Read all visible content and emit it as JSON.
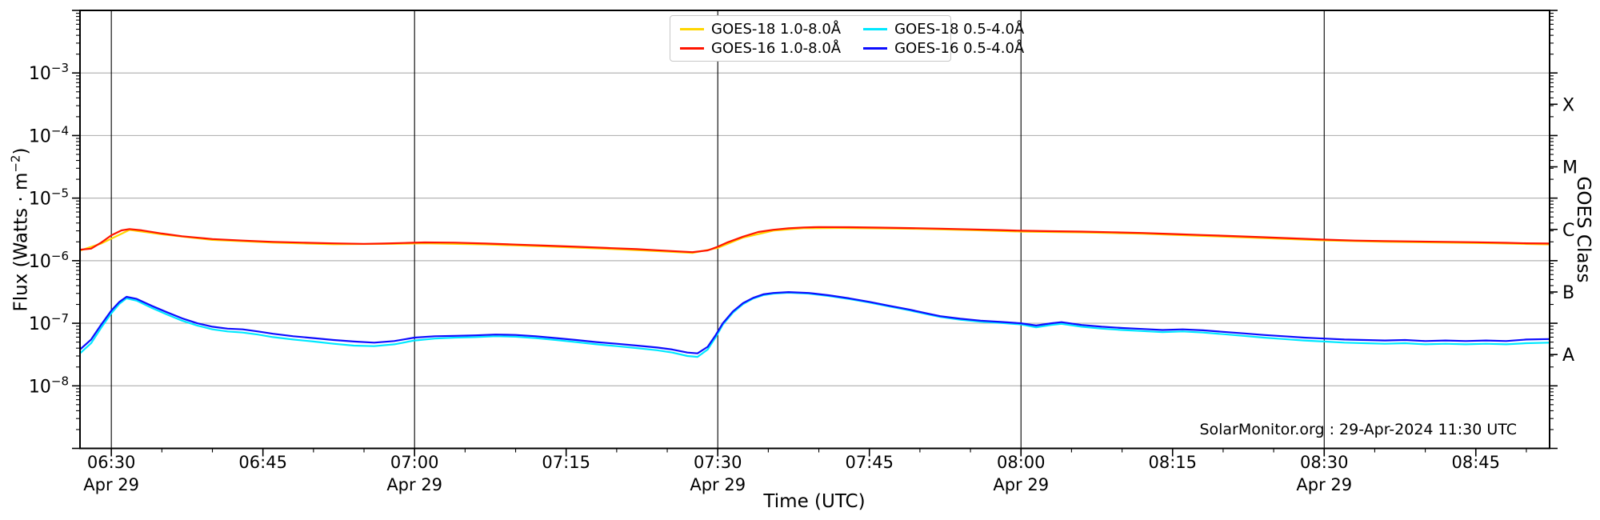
{
  "watermark": "SolarMonitor.org : 29-Apr-2024 11:30 UTC",
  "chart_data": {
    "type": "line",
    "title": "",
    "x_axis": {
      "label": "Time (UTC)",
      "range_minutes": [
        386.9,
        532.3
      ],
      "minor_step_minutes": 5,
      "major_ticks": [
        {
          "t": 390,
          "label": "06:30",
          "date": "Apr 29",
          "grid": true
        },
        {
          "t": 405,
          "label": "06:45"
        },
        {
          "t": 420,
          "label": "07:00",
          "date": "Apr 29",
          "grid": true
        },
        {
          "t": 435,
          "label": "07:15"
        },
        {
          "t": 450,
          "label": "07:30",
          "date": "Apr 29",
          "grid": true
        },
        {
          "t": 465,
          "label": "07:45"
        },
        {
          "t": 480,
          "label": "08:00",
          "date": "Apr 29",
          "grid": true
        },
        {
          "t": 495,
          "label": "08:15"
        },
        {
          "t": 510,
          "label": "08:30",
          "date": "Apr 29",
          "grid": true
        },
        {
          "t": 525,
          "label": "08:45"
        }
      ]
    },
    "y_axis": {
      "label_pre": "Flux (Watts · m",
      "label_sup": "−2",
      "label_post": ")",
      "scale": "log",
      "ylim": [
        1e-09,
        0.01
      ],
      "tick_label_base": "10",
      "labeled_decades": [
        -3,
        -4,
        -5,
        -6,
        -7,
        -8
      ]
    },
    "right_axis": {
      "label": "GOES Class",
      "classes": [
        {
          "label": "X",
          "flux": 0.0003162
        },
        {
          "label": "M",
          "flux": 3.162e-05
        },
        {
          "label": "C",
          "flux": 3.162e-06
        },
        {
          "label": "B",
          "flux": 3.162e-07
        },
        {
          "label": "A",
          "flux": 3.162e-08
        }
      ]
    },
    "grid": {
      "h_color": "#b4b4b4",
      "v_color": "#000000"
    },
    "legend_position": "top-center",
    "series": [
      {
        "name": "GOES-18 1.0-8.0Å",
        "color": "#ffd600",
        "points": [
          [
            386.9,
            1.45e-06
          ],
          [
            389,
            1.88e-06
          ],
          [
            391.8,
            3.1e-06
          ],
          [
            395,
            2.64e-06
          ],
          [
            400,
            2.15e-06
          ],
          [
            406,
            1.94e-06
          ],
          [
            412,
            1.83e-06
          ],
          [
            418,
            1.86e-06
          ],
          [
            421,
            1.9e-06
          ],
          [
            427,
            1.82e-06
          ],
          [
            433,
            1.69e-06
          ],
          [
            439,
            1.55e-06
          ],
          [
            444,
            1.42e-06
          ],
          [
            447.5,
            1.33e-06
          ],
          [
            450,
            1.6e-06
          ],
          [
            452.5,
            2.34e-06
          ],
          [
            455.5,
            3.02e-06
          ],
          [
            458.5,
            3.3e-06
          ],
          [
            462,
            3.33e-06
          ],
          [
            466,
            3.28e-06
          ],
          [
            470,
            3.22e-06
          ],
          [
            475,
            3.08e-06
          ],
          [
            480,
            2.92e-06
          ],
          [
            486,
            2.83e-06
          ],
          [
            492,
            2.69e-06
          ],
          [
            498,
            2.49e-06
          ],
          [
            504,
            2.3e-06
          ],
          [
            510,
            2.11e-06
          ],
          [
            516,
            2e-06
          ],
          [
            522,
            1.94e-06
          ],
          [
            527,
            1.89e-06
          ],
          [
            532.3,
            1.82e-06
          ]
        ]
      },
      {
        "name": "GOES-16 1.0-8.0Å",
        "color": "#ff1400",
        "points": [
          [
            386.9,
            1.5e-06
          ],
          [
            388,
            1.56e-06
          ],
          [
            389,
            1.95e-06
          ],
          [
            390,
            2.55e-06
          ],
          [
            391,
            3.05e-06
          ],
          [
            391.8,
            3.2e-06
          ],
          [
            393,
            3.06e-06
          ],
          [
            395,
            2.72e-06
          ],
          [
            397,
            2.46e-06
          ],
          [
            400,
            2.22e-06
          ],
          [
            403,
            2.1e-06
          ],
          [
            406,
            2e-06
          ],
          [
            409,
            1.94e-06
          ],
          [
            412,
            1.89e-06
          ],
          [
            415,
            1.86e-06
          ],
          [
            417,
            1.88e-06
          ],
          [
            419,
            1.92e-06
          ],
          [
            421,
            1.96e-06
          ],
          [
            424,
            1.94e-06
          ],
          [
            427,
            1.88e-06
          ],
          [
            430,
            1.81e-06
          ],
          [
            433,
            1.74e-06
          ],
          [
            436,
            1.67e-06
          ],
          [
            439,
            1.6e-06
          ],
          [
            442,
            1.53e-06
          ],
          [
            444,
            1.47e-06
          ],
          [
            446,
            1.41e-06
          ],
          [
            447.5,
            1.37e-06
          ],
          [
            449,
            1.46e-06
          ],
          [
            450,
            1.67e-06
          ],
          [
            451,
            1.97e-06
          ],
          [
            452.5,
            2.42e-06
          ],
          [
            454,
            2.87e-06
          ],
          [
            455.5,
            3.12e-06
          ],
          [
            457,
            3.3e-06
          ],
          [
            458.5,
            3.4e-06
          ],
          [
            460,
            3.45e-06
          ],
          [
            463,
            3.43e-06
          ],
          [
            466,
            3.38e-06
          ],
          [
            469,
            3.32e-06
          ],
          [
            472,
            3.25e-06
          ],
          [
            475,
            3.17e-06
          ],
          [
            478,
            3.08e-06
          ],
          [
            480,
            3.01e-06
          ],
          [
            483,
            2.96e-06
          ],
          [
            486,
            2.92e-06
          ],
          [
            489,
            2.85e-06
          ],
          [
            492,
            2.77e-06
          ],
          [
            495,
            2.67e-06
          ],
          [
            498,
            2.57e-06
          ],
          [
            501,
            2.47e-06
          ],
          [
            504,
            2.37e-06
          ],
          [
            507,
            2.27e-06
          ],
          [
            510,
            2.17e-06
          ],
          [
            513,
            2.1e-06
          ],
          [
            516,
            2.06e-06
          ],
          [
            519,
            2.03e-06
          ],
          [
            522,
            2e-06
          ],
          [
            525,
            1.97e-06
          ],
          [
            528,
            1.93e-06
          ],
          [
            530,
            1.9e-06
          ],
          [
            532.3,
            1.88e-06
          ]
        ]
      },
      {
        "name": "GOES-18 0.5-4.0Å",
        "color": "#00e8ff",
        "points": [
          [
            386.9,
            3.3e-08
          ],
          [
            388,
            4.8e-08
          ],
          [
            389,
            8.5e-08
          ],
          [
            390,
            1.45e-07
          ],
          [
            390.8,
            2.05e-07
          ],
          [
            391.5,
            2.5e-07
          ],
          [
            392.5,
            2.3e-07
          ],
          [
            394,
            1.76e-07
          ],
          [
            395.5,
            1.38e-07
          ],
          [
            397,
            1.1e-07
          ],
          [
            398.5,
            9.2e-08
          ],
          [
            400,
            8e-08
          ],
          [
            401.5,
            7.4e-08
          ],
          [
            403,
            7.1e-08
          ],
          [
            404.5,
            6.6e-08
          ],
          [
            406,
            6e-08
          ],
          [
            408,
            5.5e-08
          ],
          [
            410,
            5.1e-08
          ],
          [
            412,
            4.7e-08
          ],
          [
            414,
            4.4e-08
          ],
          [
            416,
            4.3e-08
          ],
          [
            418,
            4.6e-08
          ],
          [
            420,
            5.3e-08
          ],
          [
            422,
            5.7e-08
          ],
          [
            424,
            5.9e-08
          ],
          [
            426,
            6e-08
          ],
          [
            428,
            6.2e-08
          ],
          [
            430,
            6.1e-08
          ],
          [
            432,
            5.8e-08
          ],
          [
            434,
            5.4e-08
          ],
          [
            436,
            5e-08
          ],
          [
            438,
            4.6e-08
          ],
          [
            440,
            4.3e-08
          ],
          [
            442,
            4e-08
          ],
          [
            444,
            3.7e-08
          ],
          [
            445.5,
            3.4e-08
          ],
          [
            447,
            3e-08
          ],
          [
            448,
            2.9e-08
          ],
          [
            449,
            3.8e-08
          ],
          [
            449.8,
            6e-08
          ],
          [
            450.5,
            9.5e-08
          ],
          [
            451.5,
            1.48e-07
          ],
          [
            452.5,
            2.02e-07
          ],
          [
            453.5,
            2.48e-07
          ],
          [
            454.5,
            2.82e-07
          ],
          [
            455.5,
            2.98e-07
          ],
          [
            457,
            3.08e-07
          ],
          [
            459,
            2.98e-07
          ],
          [
            461,
            2.73e-07
          ],
          [
            463,
            2.44e-07
          ],
          [
            465,
            2.14e-07
          ],
          [
            467,
            1.85e-07
          ],
          [
            469,
            1.6e-07
          ],
          [
            471,
            1.36e-07
          ],
          [
            472,
            1.26e-07
          ],
          [
            474,
            1.14e-07
          ],
          [
            476,
            1.06e-07
          ],
          [
            478,
            1.01e-07
          ],
          [
            480,
            9.6e-08
          ],
          [
            481.5,
            8.6e-08
          ],
          [
            483,
            9.4e-08
          ],
          [
            484,
            9.8e-08
          ],
          [
            486,
            8.8e-08
          ],
          [
            488,
            8.2e-08
          ],
          [
            490,
            7.8e-08
          ],
          [
            492,
            7.5e-08
          ],
          [
            494,
            7.2e-08
          ],
          [
            496,
            7.4e-08
          ],
          [
            498,
            7.1e-08
          ],
          [
            500,
            6.7e-08
          ],
          [
            502,
            6.3e-08
          ],
          [
            504,
            5.9e-08
          ],
          [
            506,
            5.6e-08
          ],
          [
            508,
            5.3e-08
          ],
          [
            510,
            5.1e-08
          ],
          [
            512,
            4.9e-08
          ],
          [
            514,
            4.8e-08
          ],
          [
            516,
            4.7e-08
          ],
          [
            518,
            4.8e-08
          ],
          [
            520,
            4.6e-08
          ],
          [
            522,
            4.7e-08
          ],
          [
            524,
            4.6e-08
          ],
          [
            526,
            4.7e-08
          ],
          [
            528,
            4.6e-08
          ],
          [
            530,
            4.8e-08
          ],
          [
            532.3,
            4.9e-08
          ]
        ]
      },
      {
        "name": "GOES-16 0.5-4.0Å",
        "color": "#0d0dff",
        "points": [
          [
            386.9,
            3.8e-08
          ],
          [
            388,
            5.5e-08
          ],
          [
            389,
            9.5e-08
          ],
          [
            390,
            1.6e-07
          ],
          [
            390.8,
            2.2e-07
          ],
          [
            391.5,
            2.65e-07
          ],
          [
            392.5,
            2.45e-07
          ],
          [
            394,
            1.9e-07
          ],
          [
            395.5,
            1.5e-07
          ],
          [
            397,
            1.2e-07
          ],
          [
            398.5,
            1e-07
          ],
          [
            400,
            8.8e-08
          ],
          [
            401.5,
            8.2e-08
          ],
          [
            403,
            8e-08
          ],
          [
            404.5,
            7.4e-08
          ],
          [
            406,
            6.8e-08
          ],
          [
            408,
            6.2e-08
          ],
          [
            410,
            5.8e-08
          ],
          [
            412,
            5.4e-08
          ],
          [
            414,
            5.1e-08
          ],
          [
            416,
            4.9e-08
          ],
          [
            418,
            5.2e-08
          ],
          [
            420,
            5.9e-08
          ],
          [
            422,
            6.2e-08
          ],
          [
            424,
            6.3e-08
          ],
          [
            426,
            6.4e-08
          ],
          [
            428,
            6.6e-08
          ],
          [
            430,
            6.5e-08
          ],
          [
            432,
            6.2e-08
          ],
          [
            434,
            5.8e-08
          ],
          [
            436,
            5.4e-08
          ],
          [
            438,
            5e-08
          ],
          [
            440,
            4.7e-08
          ],
          [
            442,
            4.4e-08
          ],
          [
            444,
            4.1e-08
          ],
          [
            445.5,
            3.8e-08
          ],
          [
            447,
            3.4e-08
          ],
          [
            448,
            3.3e-08
          ],
          [
            449,
            4.2e-08
          ],
          [
            449.8,
            6.5e-08
          ],
          [
            450.5,
            1e-07
          ],
          [
            451.5,
            1.55e-07
          ],
          [
            452.5,
            2.1e-07
          ],
          [
            453.5,
            2.55e-07
          ],
          [
            454.5,
            2.9e-07
          ],
          [
            455.5,
            3.05e-07
          ],
          [
            457,
            3.15e-07
          ],
          [
            459,
            3.05e-07
          ],
          [
            461,
            2.8e-07
          ],
          [
            463,
            2.5e-07
          ],
          [
            465,
            2.2e-07
          ],
          [
            467,
            1.9e-07
          ],
          [
            469,
            1.65e-07
          ],
          [
            471,
            1.4e-07
          ],
          [
            472,
            1.3e-07
          ],
          [
            474,
            1.18e-07
          ],
          [
            476,
            1.1e-07
          ],
          [
            478,
            1.05e-07
          ],
          [
            480,
            1e-07
          ],
          [
            481.5,
            9.2e-08
          ],
          [
            483,
            1e-07
          ],
          [
            484,
            1.04e-07
          ],
          [
            486,
            9.4e-08
          ],
          [
            488,
            8.8e-08
          ],
          [
            490,
            8.4e-08
          ],
          [
            492,
            8.1e-08
          ],
          [
            494,
            7.8e-08
          ],
          [
            496,
            8e-08
          ],
          [
            498,
            7.7e-08
          ],
          [
            500,
            7.3e-08
          ],
          [
            502,
            6.9e-08
          ],
          [
            504,
            6.5e-08
          ],
          [
            506,
            6.2e-08
          ],
          [
            508,
            5.9e-08
          ],
          [
            510,
            5.7e-08
          ],
          [
            512,
            5.5e-08
          ],
          [
            514,
            5.4e-08
          ],
          [
            516,
            5.3e-08
          ],
          [
            518,
            5.4e-08
          ],
          [
            520,
            5.2e-08
          ],
          [
            522,
            5.3e-08
          ],
          [
            524,
            5.2e-08
          ],
          [
            526,
            5.3e-08
          ],
          [
            528,
            5.2e-08
          ],
          [
            530,
            5.5e-08
          ],
          [
            532.3,
            5.6e-08
          ]
        ]
      }
    ]
  }
}
